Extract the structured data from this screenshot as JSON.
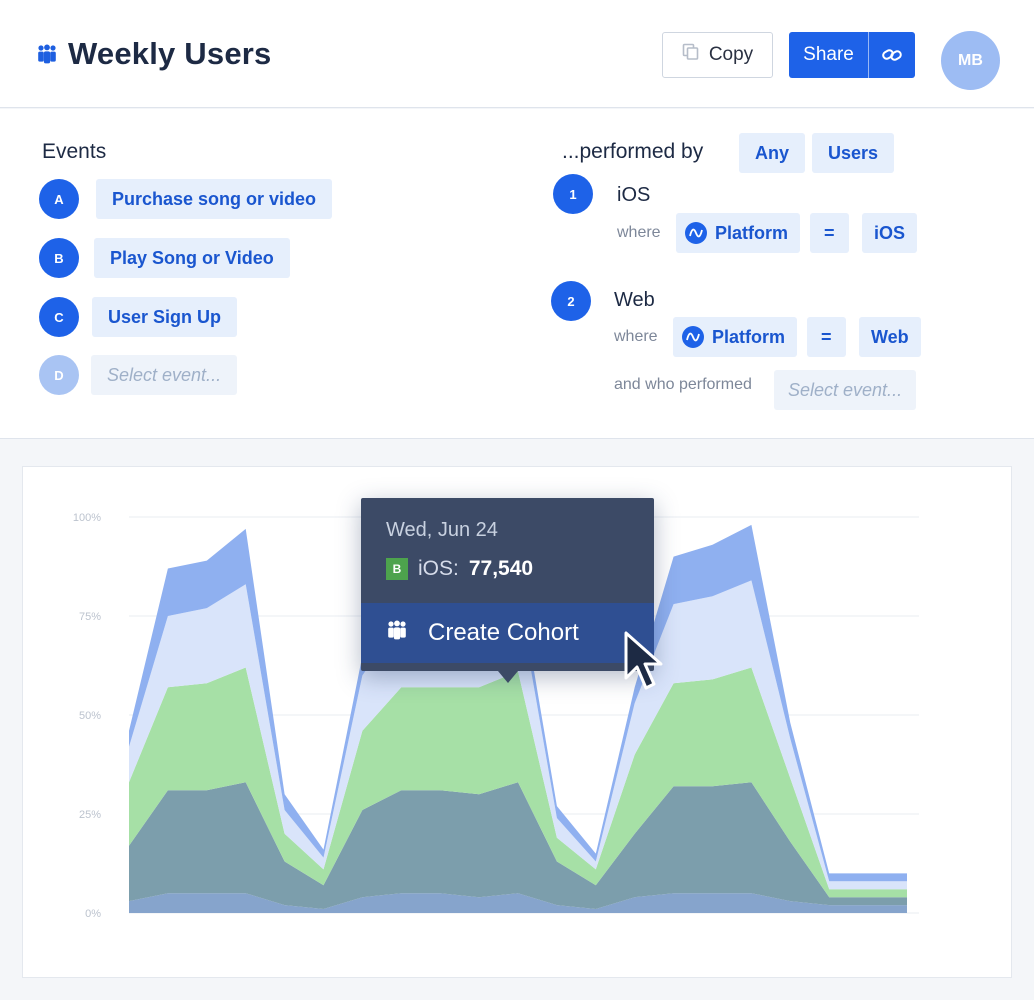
{
  "header": {
    "title": "Weekly Users",
    "title_icon": "users-group-icon",
    "copy_label": "Copy",
    "share_label": "Share",
    "avatar_initials": "MB"
  },
  "events": {
    "heading": "Events",
    "items": [
      {
        "letter": "A",
        "label": "Purchase song or video"
      },
      {
        "letter": "B",
        "label": "Play Song or Video"
      },
      {
        "letter": "C",
        "label": "User Sign Up"
      },
      {
        "letter": "D",
        "label": "Select event..."
      }
    ]
  },
  "performed_by": {
    "heading": "...performed by",
    "any_label": "Any",
    "users_label": "Users",
    "where_label": "where",
    "and_who_label": "and who performed",
    "select_event": "Select event...",
    "segments": [
      {
        "number": "1",
        "name": "iOS",
        "property": "Platform",
        "operator": "=",
        "value": "iOS"
      },
      {
        "number": "2",
        "name": "Web",
        "property": "Platform",
        "operator": "=",
        "value": "Web"
      }
    ]
  },
  "tooltip": {
    "date": "Wed, Jun 24",
    "badge": "B",
    "series_label": "iOS:",
    "value": "77,540",
    "action_label": "Create Cohort"
  },
  "colors": {
    "accent": "#1e62e8",
    "series_top": "#8fb0f0",
    "series_light": "#d9e4fa",
    "series_green": "#a6e0a6",
    "series_teal": "#7c9eac",
    "series_base": "#86a4cc"
  },
  "chart_data": {
    "type": "area",
    "stacked": true,
    "y_ticks": [
      "100%",
      "75%",
      "50%",
      "25%",
      "0%"
    ],
    "ylim": [
      0,
      100
    ],
    "grid": true,
    "x": [
      0,
      1,
      2,
      3,
      4,
      5,
      6,
      7,
      8,
      9,
      10,
      11,
      12,
      13,
      14,
      15,
      16,
      17,
      18,
      19,
      20
    ],
    "series": [
      {
        "values": [
          3,
          5,
          5,
          5,
          2,
          1,
          4,
          5,
          5,
          4,
          5,
          2,
          1,
          4,
          5,
          5,
          5,
          3,
          2,
          2,
          2
        ]
      },
      {
        "values": [
          14,
          26,
          26,
          28,
          11,
          6,
          22,
          26,
          26,
          26,
          28,
          11,
          6,
          16,
          27,
          27,
          28,
          15,
          2,
          2,
          2
        ]
      },
      {
        "values": [
          16,
          26,
          27,
          29,
          7,
          4,
          20,
          26,
          26,
          27,
          28,
          6,
          4,
          20,
          26,
          27,
          29,
          16,
          2,
          2,
          2
        ]
      },
      {
        "values": [
          9,
          18,
          19,
          21,
          6,
          3,
          14,
          17,
          17,
          18,
          19,
          5,
          2,
          13,
          20,
          21,
          22,
          10,
          2,
          2,
          2
        ]
      },
      {
        "values": [
          4,
          12,
          12,
          14,
          4,
          2,
          5,
          7,
          6,
          5,
          5,
          3,
          2,
          4,
          12,
          13,
          14,
          4,
          2,
          2,
          2
        ]
      }
    ]
  }
}
